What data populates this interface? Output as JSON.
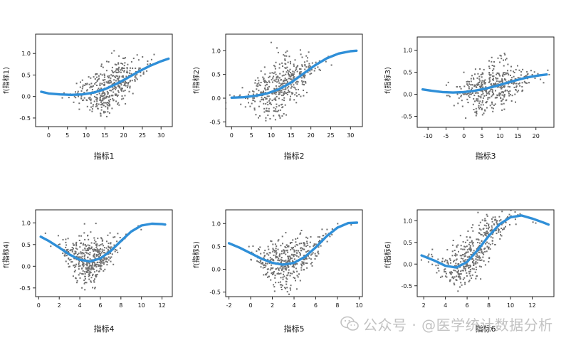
{
  "watermark": {
    "text": "公众号 · @医学统计数据分析",
    "icon": "wechat-icon"
  },
  "chart_data": [
    {
      "type": "scatter",
      "xlabel": "指标1",
      "ylabel": "f(指标1)",
      "xlim": [
        -3.5,
        33
      ],
      "ylim": [
        -0.7,
        1.45
      ],
      "xticks": [
        0,
        5,
        10,
        15,
        20,
        25,
        30
      ],
      "yticks": [
        -0.5,
        0.0,
        0.5,
        1.0
      ],
      "scatter_center": 16,
      "scatter_spread": 4.5,
      "curve": [
        [
          -2,
          0.11
        ],
        [
          0,
          0.07
        ],
        [
          3,
          0.05
        ],
        [
          6,
          0.04
        ],
        [
          9,
          0.05
        ],
        [
          12,
          0.09
        ],
        [
          15,
          0.17
        ],
        [
          18,
          0.29
        ],
        [
          21,
          0.43
        ],
        [
          24,
          0.58
        ],
        [
          27,
          0.71
        ],
        [
          30,
          0.82
        ],
        [
          32,
          0.88
        ]
      ],
      "series": [
        {
          "name": "",
          "style": "partial-residuals",
          "color": "#6f6f6f"
        },
        {
          "name": "",
          "style": "fitted-smooth",
          "color": "#2f8fd8"
        }
      ]
    },
    {
      "type": "scatter",
      "xlabel": "指标2",
      "ylabel": "f(指标2)",
      "xlim": [
        -1.5,
        33
      ],
      "ylim": [
        -0.6,
        1.35
      ],
      "xticks": [
        0,
        5,
        10,
        15,
        20,
        25,
        30
      ],
      "yticks": [
        -0.5,
        0.0,
        0.5,
        1.0
      ],
      "scatter_center": 12,
      "scatter_spread": 4.5,
      "curve": [
        [
          0,
          0.01
        ],
        [
          3,
          0.02
        ],
        [
          6,
          0.05
        ],
        [
          9,
          0.1
        ],
        [
          12,
          0.19
        ],
        [
          15,
          0.33
        ],
        [
          18,
          0.51
        ],
        [
          21,
          0.69
        ],
        [
          24,
          0.84
        ],
        [
          27,
          0.94
        ],
        [
          30,
          0.99
        ],
        [
          31.5,
          1.0
        ]
      ],
      "series": [
        {
          "name": "",
          "style": "partial-residuals",
          "color": "#6f6f6f"
        },
        {
          "name": "",
          "style": "fitted-smooth",
          "color": "#2f8fd8"
        }
      ]
    },
    {
      "type": "scatter",
      "xlabel": "指标3",
      "ylabel": "f(指标3)",
      "xlim": [
        -13,
        25
      ],
      "ylim": [
        -0.75,
        1.3
      ],
      "xticks": [
        -10,
        -5,
        0,
        5,
        10,
        15,
        20
      ],
      "yticks": [
        -0.5,
        0.0,
        0.5,
        1.0
      ],
      "scatter_center": 8,
      "scatter_spread": 5,
      "curve": [
        [
          -11.5,
          0.11
        ],
        [
          -9,
          0.08
        ],
        [
          -6,
          0.05
        ],
        [
          -3,
          0.04
        ],
        [
          0,
          0.05
        ],
        [
          3,
          0.08
        ],
        [
          6,
          0.13
        ],
        [
          9,
          0.19
        ],
        [
          12,
          0.26
        ],
        [
          15,
          0.33
        ],
        [
          18,
          0.39
        ],
        [
          21,
          0.43
        ],
        [
          23,
          0.45
        ]
      ],
      "series": [
        {
          "name": "",
          "style": "partial-residuals",
          "color": "#6f6f6f"
        },
        {
          "name": "",
          "style": "fitted-smooth",
          "color": "#2f8fd8"
        }
      ]
    },
    {
      "type": "scatter",
      "xlabel": "指标4",
      "ylabel": "f(指标4)",
      "xlim": [
        -0.3,
        13
      ],
      "ylim": [
        -0.7,
        1.3
      ],
      "xticks": [
        0,
        2,
        4,
        6,
        8,
        10,
        12
      ],
      "yticks": [
        -0.5,
        0.0,
        0.5,
        1.0
      ],
      "scatter_center": 5,
      "scatter_spread": 1.4,
      "curve": [
        [
          0.2,
          0.68
        ],
        [
          1,
          0.58
        ],
        [
          2,
          0.43
        ],
        [
          3,
          0.27
        ],
        [
          4,
          0.15
        ],
        [
          5,
          0.11
        ],
        [
          6,
          0.18
        ],
        [
          7,
          0.35
        ],
        [
          8,
          0.58
        ],
        [
          9,
          0.8
        ],
        [
          10,
          0.94
        ],
        [
          11,
          0.98
        ],
        [
          12,
          0.97
        ],
        [
          12.3,
          0.96
        ]
      ],
      "series": [
        {
          "name": "",
          "style": "partial-residuals",
          "color": "#6f6f6f"
        },
        {
          "name": "",
          "style": "fitted-smooth",
          "color": "#2f8fd8"
        }
      ]
    },
    {
      "type": "scatter",
      "xlabel": "指标5",
      "ylabel": "f(指标5)",
      "xlim": [
        -2.3,
        10.3
      ],
      "ylim": [
        -0.6,
        1.3
      ],
      "xticks": [
        -2,
        0,
        2,
        4,
        6,
        8,
        10
      ],
      "yticks": [
        -0.5,
        0.0,
        0.5,
        1.0
      ],
      "scatter_center": 3.4,
      "scatter_spread": 1.5,
      "curve": [
        [
          -2,
          0.57
        ],
        [
          -1,
          0.47
        ],
        [
          0,
          0.35
        ],
        [
          1,
          0.23
        ],
        [
          2,
          0.14
        ],
        [
          3,
          0.1
        ],
        [
          4,
          0.14
        ],
        [
          5,
          0.27
        ],
        [
          6,
          0.48
        ],
        [
          7,
          0.72
        ],
        [
          8,
          0.91
        ],
        [
          9,
          1.01
        ],
        [
          9.8,
          1.02
        ]
      ],
      "series": [
        {
          "name": "",
          "style": "partial-residuals",
          "color": "#6f6f6f"
        },
        {
          "name": "",
          "style": "fitted-smooth",
          "color": "#2f8fd8"
        }
      ]
    },
    {
      "type": "scatter",
      "xlabel": "指标6",
      "ylabel": "f(指标6)",
      "xlim": [
        1.4,
        14
      ],
      "ylim": [
        -0.75,
        1.25
      ],
      "xticks": [
        2,
        4,
        6,
        8,
        10,
        12
      ],
      "yticks": [
        -0.5,
        0.0,
        0.5,
        1.0
      ],
      "scatter_center": 6.5,
      "scatter_spread": 1.8,
      "curve": [
        [
          1.8,
          0.2
        ],
        [
          3,
          0.08
        ],
        [
          4,
          -0.04
        ],
        [
          5,
          -0.08
        ],
        [
          6,
          0.05
        ],
        [
          7,
          0.33
        ],
        [
          8,
          0.65
        ],
        [
          9,
          0.92
        ],
        [
          10,
          1.08
        ],
        [
          11,
          1.12
        ],
        [
          12,
          1.05
        ],
        [
          13,
          0.96
        ],
        [
          13.5,
          0.91
        ]
      ],
      "series": [
        {
          "name": "",
          "style": "partial-residuals",
          "color": "#6f6f6f"
        },
        {
          "name": "",
          "style": "fitted-smooth",
          "color": "#2f8fd8"
        }
      ]
    }
  ]
}
